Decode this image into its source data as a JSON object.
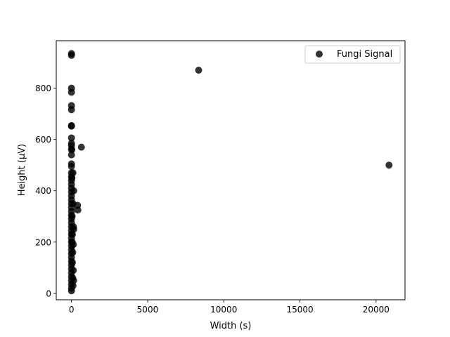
{
  "chart_data": {
    "type": "scatter",
    "title": "",
    "xlabel": "Width (s)",
    "ylabel": "Height (μV)",
    "xlim": [
      -1000,
      21900
    ],
    "ylim": [
      -25,
      985
    ],
    "xticks": [
      0,
      5000,
      10000,
      15000,
      20000
    ],
    "yticks": [
      0,
      200,
      400,
      600,
      800
    ],
    "xtick_labels": [
      "0",
      "5000",
      "10000",
      "15000",
      "20000"
    ],
    "ytick_labels": [
      "0",
      "200",
      "400",
      "600",
      "800"
    ],
    "grid": false,
    "legend": {
      "position": "top-right",
      "entries": [
        "Fungi Signal"
      ]
    },
    "series": [
      {
        "name": "Fungi Signal",
        "color": "#000000",
        "opacity": 0.8,
        "points": [
          [
            0,
            935
          ],
          [
            0,
            928
          ],
          [
            0,
            800
          ],
          [
            0,
            784
          ],
          [
            0,
            732
          ],
          [
            0,
            716
          ],
          [
            0,
            654
          ],
          [
            0,
            652
          ],
          [
            0,
            606
          ],
          [
            0,
            585
          ],
          [
            0,
            576
          ],
          [
            0,
            562
          ],
          [
            0,
            540
          ],
          [
            0,
            505
          ],
          [
            0,
            495
          ],
          [
            0,
            470
          ],
          [
            0,
            455
          ],
          [
            0,
            440
          ],
          [
            0,
            425
          ],
          [
            0,
            410
          ],
          [
            0,
            395
          ],
          [
            0,
            380
          ],
          [
            0,
            365
          ],
          [
            0,
            350
          ],
          [
            0,
            335
          ],
          [
            0,
            320
          ],
          [
            0,
            305
          ],
          [
            0,
            290
          ],
          [
            0,
            275
          ],
          [
            0,
            260
          ],
          [
            0,
            245
          ],
          [
            0,
            230
          ],
          [
            0,
            215
          ],
          [
            0,
            200
          ],
          [
            0,
            185
          ],
          [
            0,
            170
          ],
          [
            0,
            155
          ],
          [
            0,
            140
          ],
          [
            0,
            125
          ],
          [
            0,
            110
          ],
          [
            0,
            95
          ],
          [
            0,
            80
          ],
          [
            0,
            65
          ],
          [
            0,
            50
          ],
          [
            0,
            35
          ],
          [
            0,
            20
          ],
          [
            0,
            10
          ],
          [
            20,
            560
          ],
          [
            30,
            450
          ],
          [
            40,
            300
          ],
          [
            50,
            200
          ],
          [
            60,
            120
          ],
          [
            80,
            60
          ],
          [
            100,
            30
          ],
          [
            100,
            470
          ],
          [
            150,
            400
          ],
          [
            100,
            350
          ],
          [
            130,
            260
          ],
          [
            150,
            250
          ],
          [
            120,
            190
          ],
          [
            120,
            90
          ],
          [
            140,
            50
          ],
          [
            80,
            160
          ],
          [
            60,
            230
          ],
          [
            400,
            343
          ],
          [
            420,
            325
          ],
          [
            650,
            570
          ],
          [
            8350,
            870
          ],
          [
            20850,
            500
          ]
        ]
      }
    ]
  }
}
